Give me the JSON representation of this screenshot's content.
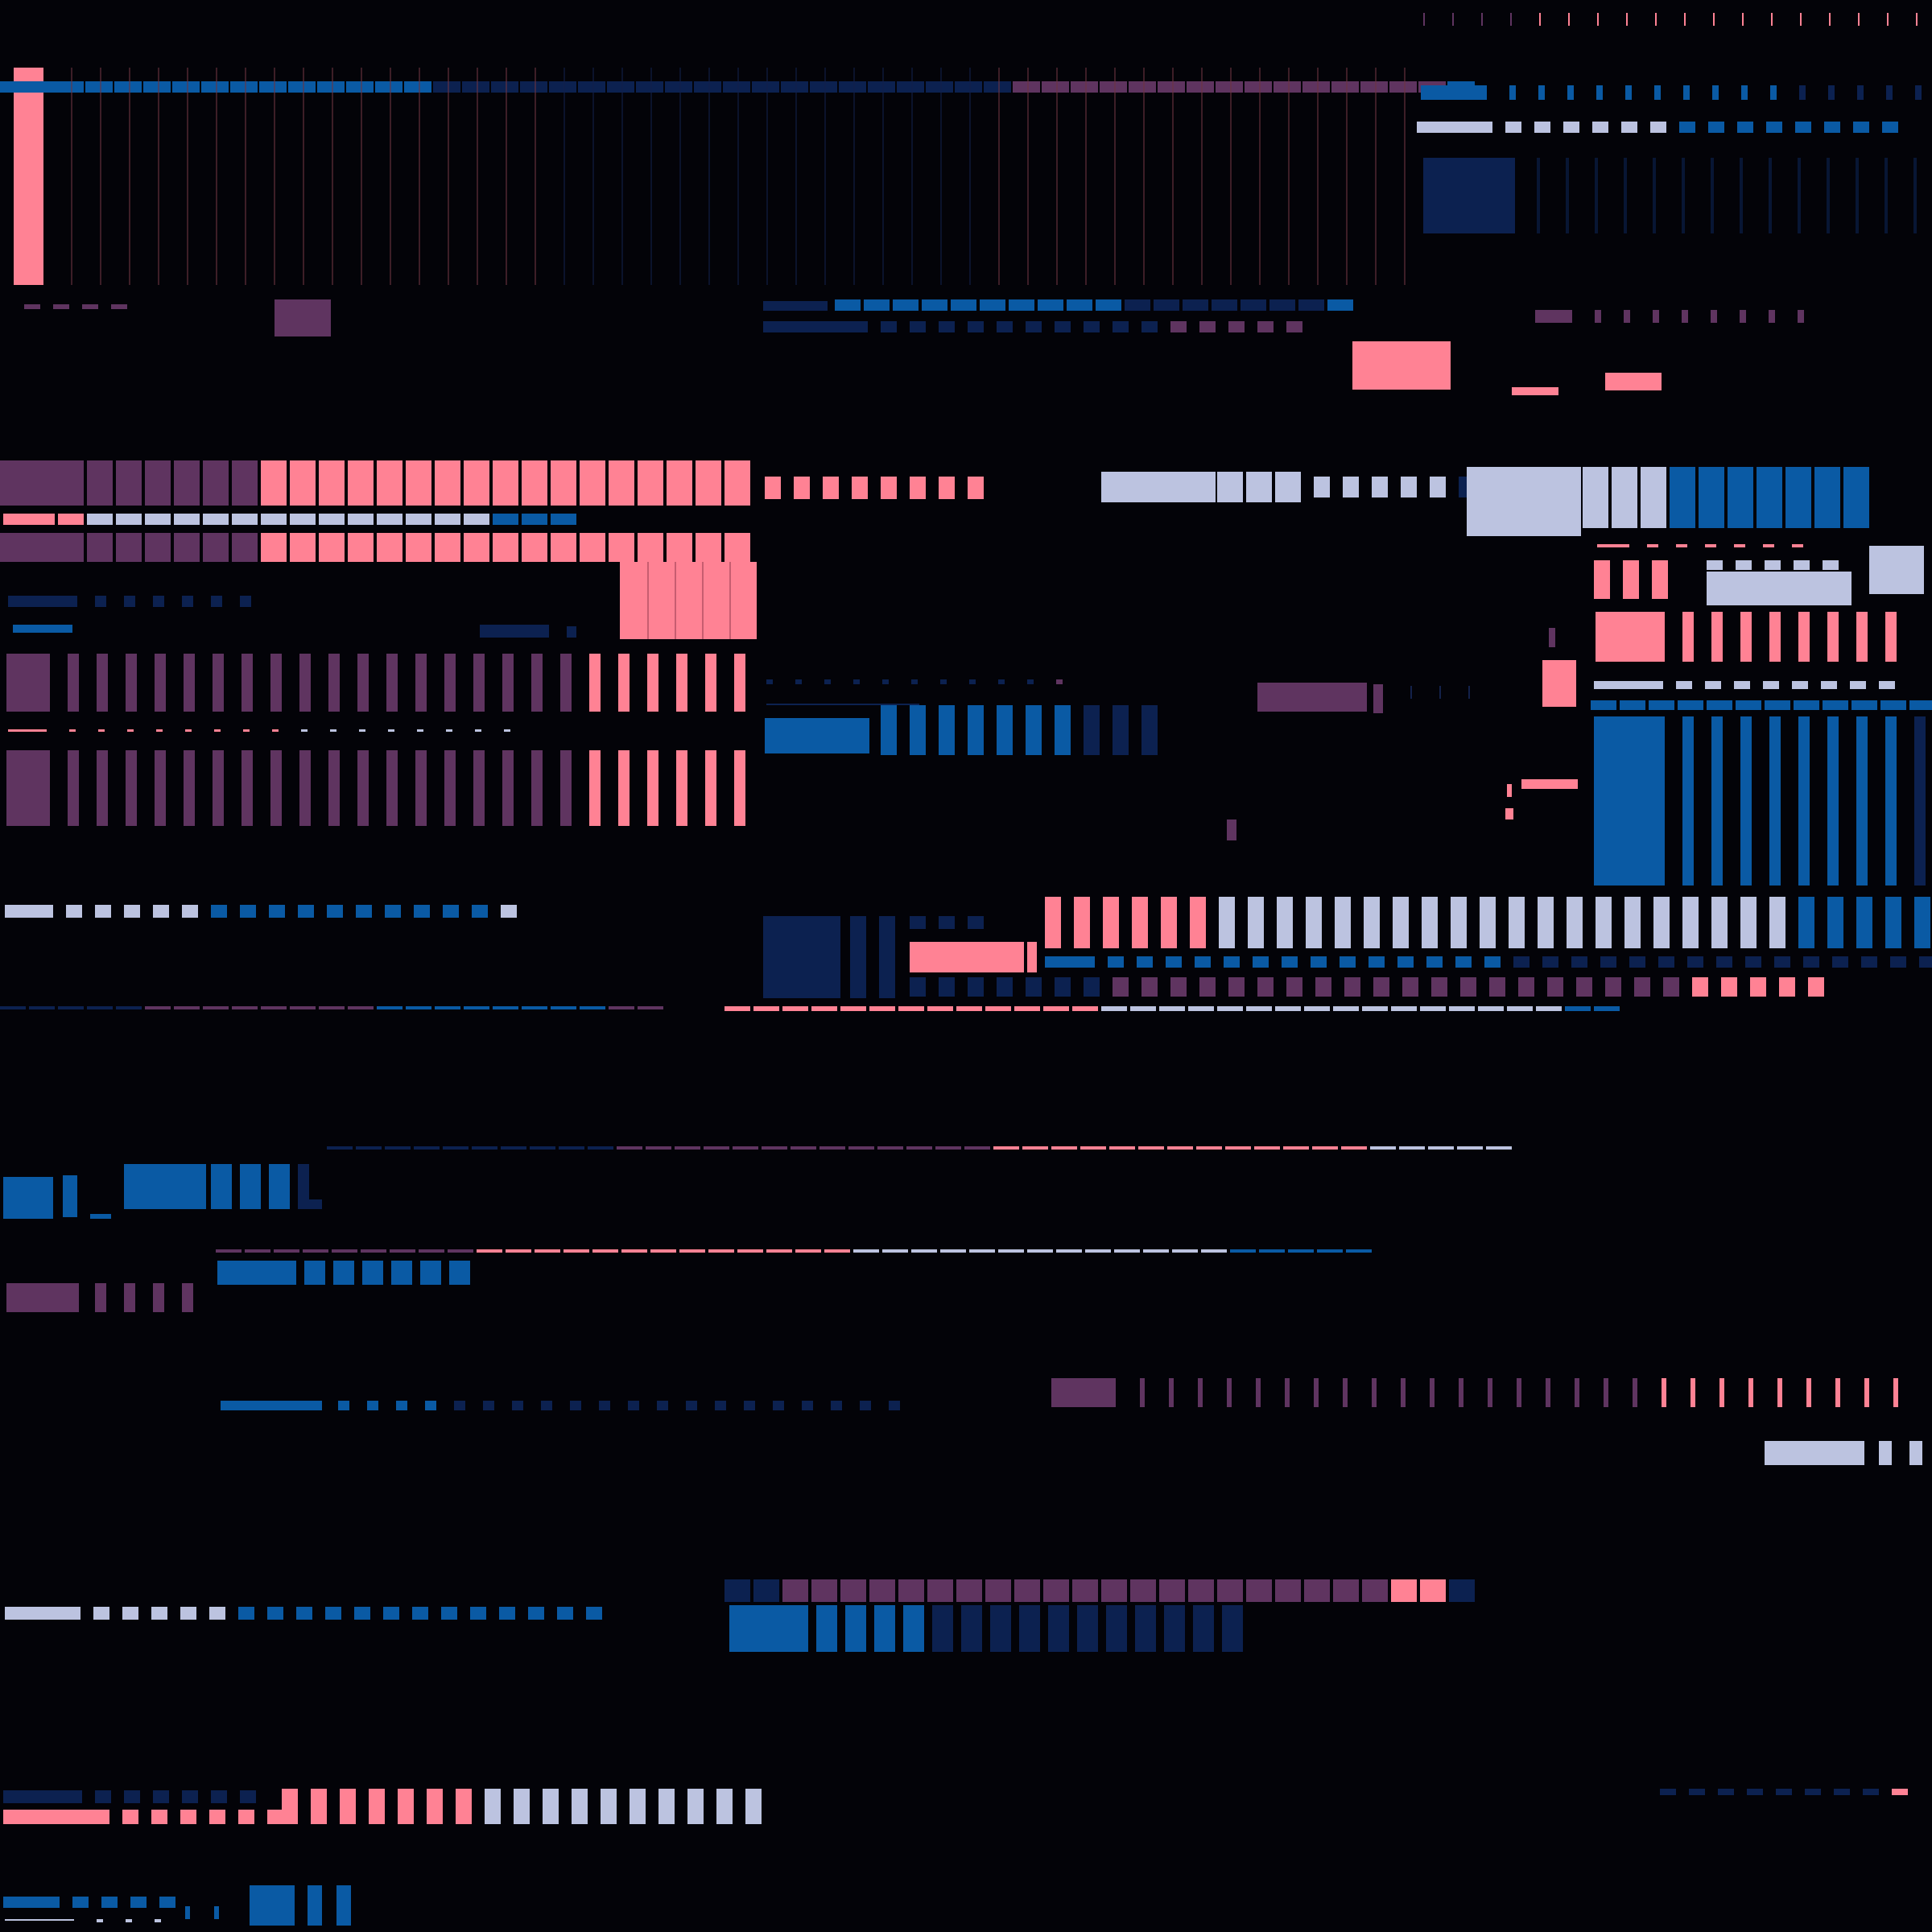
{
  "palette": {
    "background": "#030308",
    "pink": "#ff8294",
    "plum": "#5f3460",
    "blue": "#0a5aa4",
    "navy": "#0c2150",
    "lavender": "#bcc3e0",
    "ink": "#081634",
    "rule_pink": "#6e3442",
    "rule_navy": "#13214a"
  }
}
